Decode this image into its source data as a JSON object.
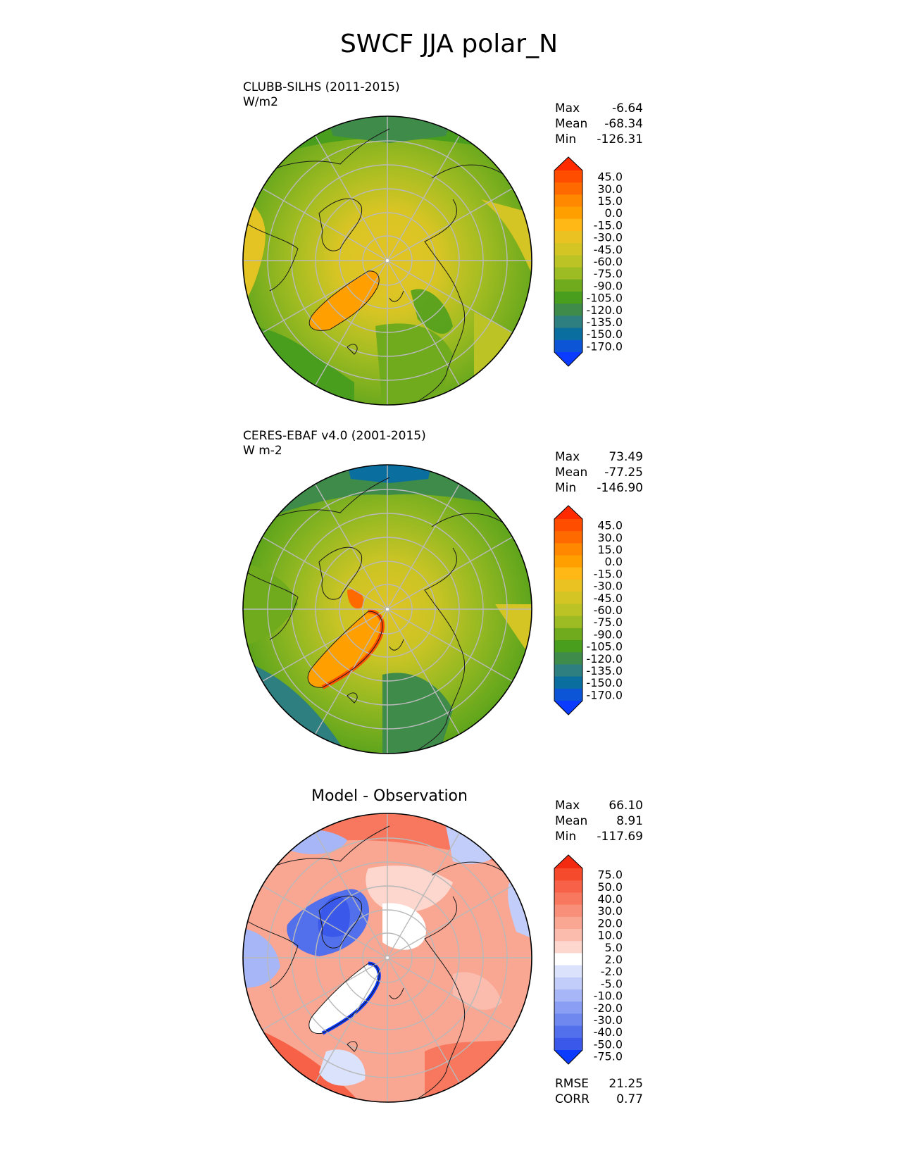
{
  "figure": {
    "title": "SWCF JJA polar_N"
  },
  "panels": [
    {
      "id": "test",
      "label_line1": "CLUBB-SILHS (2011-2015)",
      "label_line2": "W/m2",
      "stats": {
        "max_label": "Max",
        "max": "-6.64",
        "mean_label": "Mean",
        "mean": "-68.34",
        "min_label": "Min",
        "min": "-126.31"
      },
      "colorbar": {
        "levels": [
          "45.0",
          "30.0",
          "15.0",
          "0.0",
          "-15.0",
          "-30.0",
          "-45.0",
          "-60.0",
          "-75.0",
          "-90.0",
          "-105.0",
          "-120.0",
          "-135.0",
          "-150.0",
          "-170.0"
        ],
        "colors": [
          "#ff2a00",
          "#ff4d00",
          "#ff6a00",
          "#ff8800",
          "#ffa000",
          "#ffb816",
          "#eac322",
          "#d4c524",
          "#bcc325",
          "#9dbb22",
          "#6fab1c",
          "#4a9e1d",
          "#3e8b4a",
          "#2e7f80",
          "#0a6f9e",
          "#0b55d6",
          "#0a3bff"
        ]
      }
    },
    {
      "id": "reference",
      "label_line1": "CERES-EBAF v4.0 (2001-2015)",
      "label_line2": "W m-2",
      "stats": {
        "max_label": "Max",
        "max": "73.49",
        "mean_label": "Mean",
        "mean": "-77.25",
        "min_label": "Min",
        "min": "-146.90"
      },
      "colorbar": {
        "levels": [
          "45.0",
          "30.0",
          "15.0",
          "0.0",
          "-15.0",
          "-30.0",
          "-45.0",
          "-60.0",
          "-75.0",
          "-90.0",
          "-105.0",
          "-120.0",
          "-135.0",
          "-150.0",
          "-170.0"
        ],
        "colors": [
          "#ff2a00",
          "#ff4d00",
          "#ff6a00",
          "#ff8800",
          "#ffa000",
          "#ffb816",
          "#eac322",
          "#d4c524",
          "#bcc325",
          "#9dbb22",
          "#6fab1c",
          "#4a9e1d",
          "#3e8b4a",
          "#2e7f80",
          "#0a6f9e",
          "#0b55d6",
          "#0a3bff"
        ]
      }
    },
    {
      "id": "diff",
      "title": "Model - Observation",
      "stats": {
        "max_label": "Max",
        "max": "66.10",
        "mean_label": "Mean",
        "mean": "8.91",
        "min_label": "Min",
        "min": "-117.69"
      },
      "extra": {
        "rmse_label": "RMSE",
        "rmse": "21.25",
        "corr_label": "CORR",
        "corr": "0.77"
      },
      "colorbar": {
        "levels": [
          "75.0",
          "50.0",
          "40.0",
          "30.0",
          "20.0",
          "10.0",
          "5.0",
          "2.0",
          "-2.0",
          "-5.0",
          "-10.0",
          "-20.0",
          "-30.0",
          "-40.0",
          "-50.0",
          "-75.0"
        ],
        "colors": [
          "#f42a10",
          "#f54a2c",
          "#f66148",
          "#f7785f",
          "#f88f78",
          "#f9a692",
          "#fbbcae",
          "#fdd6cd",
          "#ffffff",
          "#dbe2fb",
          "#c2cdf9",
          "#a6b6f6",
          "#8a9ff3",
          "#6e88f0",
          "#5370ec",
          "#3a59ea",
          "#0a3bff"
        ]
      }
    }
  ]
}
